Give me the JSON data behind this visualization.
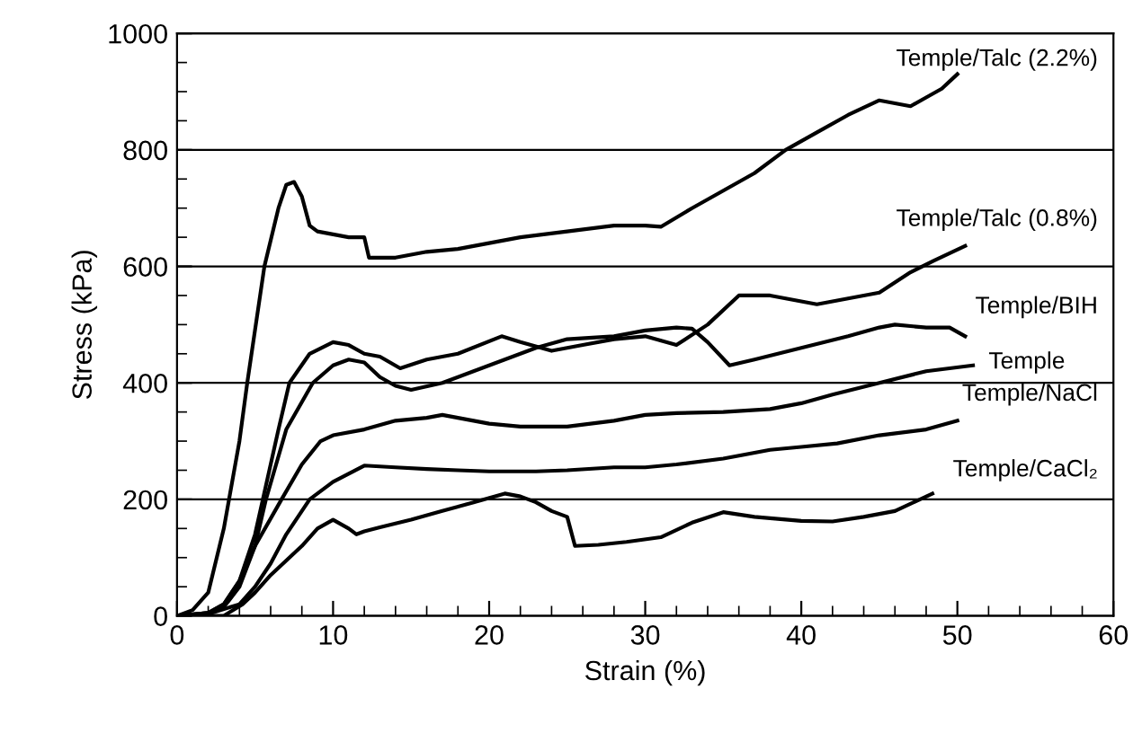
{
  "chart_data": {
    "type": "line",
    "xlabel": "Strain (%)",
    "ylabel": "Stress (kPa)",
    "xlim": [
      0,
      60
    ],
    "ylim": [
      0,
      1000
    ],
    "xticks": [
      0,
      10,
      20,
      30,
      40,
      50,
      60
    ],
    "yticks": [
      0,
      200,
      400,
      600,
      800,
      1000
    ],
    "grid": "y",
    "legend": false,
    "marker": "none",
    "line_style": "solid",
    "series": [
      {
        "name": "Temple/Talc (2.2%)",
        "color": "#000000",
        "x": [
          0,
          1,
          2,
          3,
          4,
          4.5,
          5.6,
          6.5,
          7,
          7.5,
          8,
          8.5,
          9,
          10,
          11,
          12,
          12.3,
          12.6,
          14,
          16,
          18,
          20,
          22,
          25,
          28,
          30,
          31,
          33,
          35,
          37,
          39,
          41,
          43,
          45,
          46,
          47,
          48,
          49,
          50
        ],
        "values": [
          0,
          10,
          40,
          150,
          300,
          400,
          600,
          700,
          740,
          745,
          720,
          670,
          660,
          655,
          650,
          650,
          615,
          615,
          615,
          625,
          630,
          640,
          650,
          660,
          670,
          670,
          668,
          700,
          730,
          760,
          800,
          830,
          860,
          885,
          880,
          875,
          890,
          905,
          930
        ]
      },
      {
        "name": "Temple/Talc (0.8%)",
        "color": "#000000",
        "x": [
          0,
          2,
          3,
          4,
          5,
          5.5,
          6.5,
          7.2,
          8.5,
          10,
          11,
          12,
          13,
          14.3,
          16,
          18,
          20.8,
          22,
          24,
          26,
          28,
          30,
          32,
          34,
          36,
          38,
          39,
          41,
          43,
          45,
          47,
          48.5,
          50.5
        ],
        "values": [
          0,
          5,
          20,
          60,
          140,
          200,
          320,
          400,
          450,
          470,
          465,
          450,
          445,
          425,
          440,
          450,
          480,
          470,
          455,
          465,
          475,
          480,
          465,
          500,
          550,
          550,
          545,
          535,
          545,
          555,
          590,
          610,
          635
        ]
      },
      {
        "name": "Temple/BIH",
        "color": "#000000",
        "x": [
          0,
          2,
          3,
          4,
          5,
          5.7,
          7,
          8.7,
          10,
          11,
          12,
          13,
          14,
          15,
          17,
          19,
          21,
          23,
          25,
          28,
          30,
          32,
          33,
          34,
          35.4,
          37,
          40,
          43,
          45,
          46,
          48,
          49.5,
          50.5
        ],
        "values": [
          0,
          5,
          15,
          50,
          120,
          200,
          320,
          400,
          430,
          440,
          435,
          410,
          395,
          388,
          400,
          420,
          440,
          460,
          475,
          480,
          490,
          495,
          493,
          470,
          430,
          440,
          460,
          480,
          495,
          500,
          495,
          495,
          480
        ]
      },
      {
        "name": "Temple",
        "color": "#000000",
        "x": [
          0,
          2,
          3,
          4,
          5,
          6.7,
          8,
          9.2,
          10,
          12,
          14,
          16,
          17,
          18,
          20,
          22,
          25,
          28,
          30,
          32,
          35,
          38,
          40,
          42,
          45,
          48,
          51
        ],
        "values": [
          0,
          5,
          20,
          60,
          120,
          200,
          260,
          300,
          310,
          320,
          335,
          340,
          345,
          340,
          330,
          325,
          325,
          335,
          345,
          348,
          350,
          355,
          365,
          380,
          400,
          420,
          430
        ]
      },
      {
        "name": "Temple/NaCl",
        "color": "#000000",
        "x": [
          0,
          2,
          4,
          5,
          6,
          7,
          8.5,
          10,
          12,
          14,
          16,
          18,
          20,
          23,
          25,
          28,
          30,
          32,
          35,
          38,
          40,
          42.3,
          45,
          48,
          50
        ],
        "values": [
          0,
          3,
          20,
          50,
          90,
          140,
          200,
          230,
          258,
          255,
          252,
          250,
          248,
          248,
          250,
          255,
          255,
          260,
          270,
          285,
          290,
          296,
          310,
          320,
          335
        ]
      },
      {
        "name": "Temple/CaCl₂",
        "color": "#000000",
        "x": [
          0,
          3,
          4.2,
          5,
          6,
          7.2,
          8,
          9,
          10,
          11,
          11.5,
          12,
          13,
          15,
          17,
          19,
          21,
          22,
          23,
          24,
          25,
          25.5,
          27,
          28.8,
          31,
          33,
          35,
          37,
          40,
          42,
          44,
          46,
          48.4
        ],
        "values": [
          0,
          0,
          20,
          40,
          70,
          100,
          120,
          150,
          165,
          150,
          140,
          145,
          152,
          165,
          180,
          195,
          210,
          205,
          195,
          180,
          170,
          120,
          122,
          127,
          135,
          160,
          178,
          170,
          163,
          162,
          170,
          180,
          210
        ]
      }
    ]
  }
}
